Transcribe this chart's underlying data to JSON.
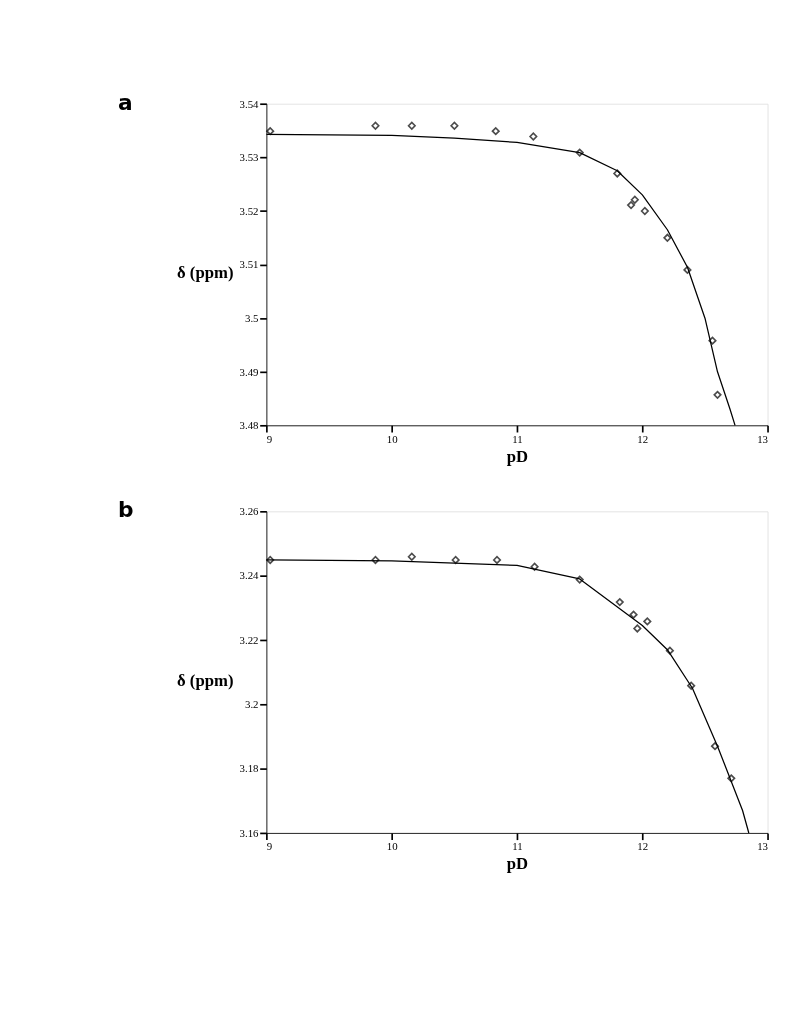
{
  "chart_data": [
    {
      "type": "scatter",
      "title": "a",
      "xlabel": "pD",
      "ylabel": "δ (ppm)",
      "xlim": [
        9,
        13
      ],
      "xticks": [
        9,
        10,
        11,
        12,
        13
      ],
      "ylim": [
        3.48,
        3.54
      ],
      "yticks": [
        3.48,
        3.49,
        3.5,
        3.51,
        3.52,
        3.53,
        3.54
      ],
      "grid": false,
      "marker": "diamond",
      "series": [
        {
          "color": "#000000",
          "x": [
            9.03,
            9.87,
            10.16,
            10.5,
            10.83,
            11.13,
            11.5,
            11.8,
            11.94,
            11.91,
            12.02,
            12.2,
            12.36,
            12.56,
            12.6
          ],
          "values": [
            3.5349,
            3.5359,
            3.5359,
            3.5359,
            3.5349,
            3.5339,
            3.5309,
            3.527,
            3.5221,
            3.5211,
            3.52,
            3.515,
            3.509,
            3.4958,
            3.4857
          ]
        },
        {
          "type": "line",
          "color": "#000000",
          "marker": "none",
          "x": [
            9,
            10,
            10.5,
            11,
            11.5,
            11.8,
            12,
            12.2,
            12.36,
            12.5,
            12.6,
            12.7,
            12.74
          ],
          "values": [
            3.5343,
            3.5341,
            3.5336,
            3.5328,
            3.5309,
            3.5275,
            3.523,
            3.5165,
            3.5095,
            3.5,
            3.49,
            3.483,
            3.48
          ]
        }
      ]
    },
    {
      "type": "scatter",
      "title": "b",
      "xlabel": "pD",
      "ylabel": "δ (ppm)",
      "xlim": [
        9,
        13
      ],
      "xticks": [
        9,
        10,
        11,
        12,
        13
      ],
      "ylim": [
        3.16,
        3.26
      ],
      "yticks": [
        3.16,
        3.18,
        3.2,
        3.22,
        3.24,
        3.26
      ],
      "grid": false,
      "marker": "diamond",
      "series": [
        {
          "color": "#000000",
          "x": [
            9.03,
            9.87,
            10.16,
            10.51,
            10.84,
            11.14,
            11.5,
            11.82,
            11.93,
            11.96,
            12.04,
            12.22,
            12.39,
            12.58,
            12.71
          ],
          "values": [
            3.2449,
            3.2449,
            3.2459,
            3.2449,
            3.2449,
            3.2428,
            3.2388,
            3.2318,
            3.2279,
            3.2236,
            3.2258,
            3.2167,
            3.2058,
            3.187,
            3.177
          ]
        },
        {
          "type": "line",
          "color": "#000000",
          "marker": "none",
          "x": [
            9,
            10,
            11,
            11.5,
            12,
            12.2,
            12.4,
            12.6,
            12.8,
            12.85
          ],
          "values": [
            3.2449,
            3.2446,
            3.2432,
            3.239,
            3.2245,
            3.217,
            3.205,
            3.187,
            3.167,
            3.16
          ]
        }
      ]
    }
  ]
}
